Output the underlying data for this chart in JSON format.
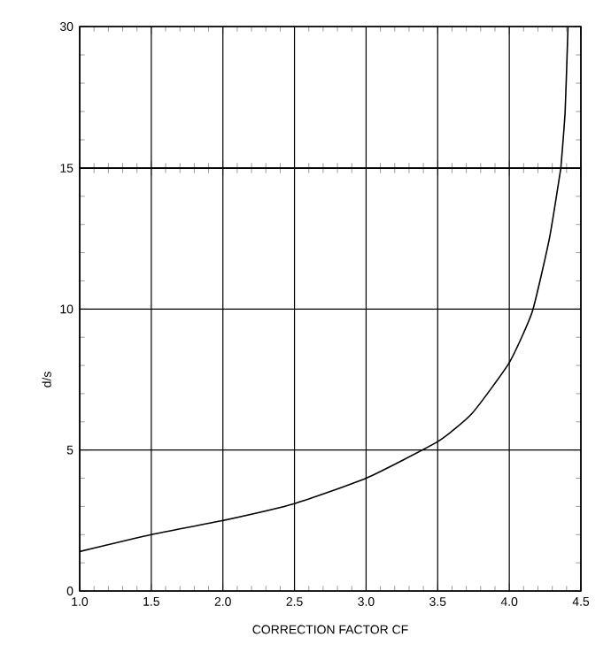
{
  "chart_data": [
    {
      "type": "line",
      "x": [
        4.36,
        4.39,
        4.41
      ],
      "values": [
        15,
        21,
        30
      ],
      "color": "#000000",
      "xlim": [
        1.0,
        4.5
      ],
      "xticks": [
        1.0,
        1.5,
        2.0,
        2.5,
        3.0,
        3.5,
        4.0,
        4.5
      ],
      "ylim": [
        15,
        30
      ],
      "yticks": [
        15,
        30
      ],
      "tick_labels": "y",
      "grid": true,
      "marker": "none",
      "line_style": "solid"
    },
    {
      "type": "line",
      "xlabel": "CORRECTION FACTOR CF",
      "ylabel": "d/s",
      "x": [
        1.0,
        1.5,
        2.0,
        2.5,
        3.0,
        3.5,
        3.74,
        4.0,
        4.16,
        4.28,
        4.36
      ],
      "values": [
        1.4,
        2.0,
        2.5,
        3.1,
        4.0,
        5.3,
        6.3,
        8.1,
        9.9,
        12.5,
        15
      ],
      "color": "#000000",
      "xlim": [
        1.0,
        4.5
      ],
      "xticks": [
        {
          "value": 1.0,
          "label": "1.0"
        },
        1.5,
        {
          "value": 2.0,
          "label": "2.0"
        },
        2.5,
        {
          "value": 3.0,
          "label": "3.0"
        },
        3.5,
        {
          "value": 4.0,
          "label": "4.0"
        },
        4.5
      ],
      "ylim": [
        0,
        15
      ],
      "yticks": [
        0,
        5,
        10,
        {
          "value": 15,
          "label": null
        }
      ],
      "grid": true,
      "marker": "none",
      "line_style": "solid"
    }
  ]
}
